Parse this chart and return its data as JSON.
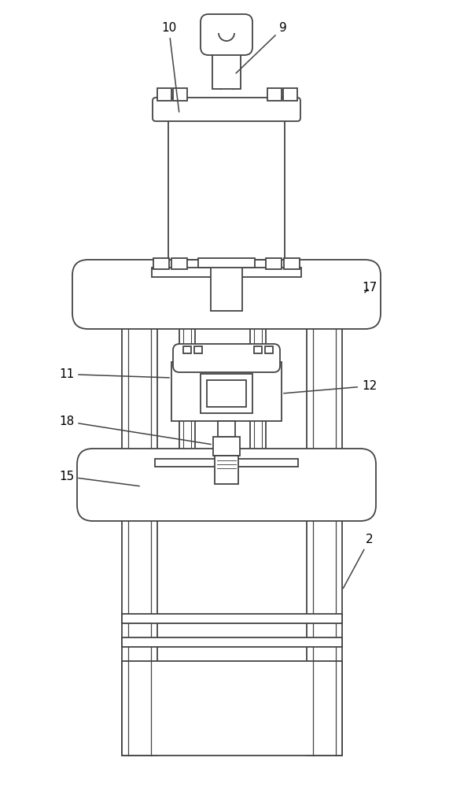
{
  "bg_color": "#ffffff",
  "line_color": "#444444",
  "line_width": 1.3,
  "fig_width": 5.76,
  "fig_height": 10.0
}
